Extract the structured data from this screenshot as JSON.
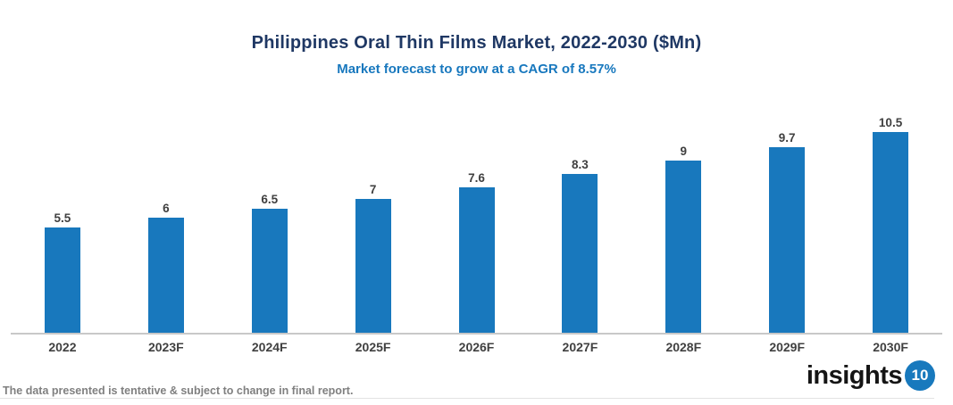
{
  "chart_data": {
    "type": "bar",
    "title": "Philippines Oral Thin Films Market, 2022-2030 ($Mn)",
    "subtitle": "Market forecast to grow at a CAGR of 8.57%",
    "categories": [
      "2022",
      "2023F",
      "2024F",
      "2025F",
      "2026F",
      "2027F",
      "2028F",
      "2029F",
      "2030F"
    ],
    "values": [
      5.5,
      6,
      6.5,
      7,
      7.6,
      8.3,
      9,
      9.7,
      10.5
    ],
    "ylim": [
      0,
      11.5
    ],
    "grid": false,
    "legend": "none",
    "data_labels": true,
    "bar_color": "#1878bd"
  },
  "colors": {
    "title": "#1f3864",
    "subtitle": "#1878be",
    "bar": "#1878bd",
    "axis_line": "#c8c8c8",
    "data_label": "#404040",
    "footer_text": "#808080",
    "logo_badge": "#1879bd"
  },
  "footer": {
    "disclaimer": "The data presented is tentative & subject to change in final report."
  },
  "logo": {
    "text": "insights",
    "badge": "10"
  }
}
